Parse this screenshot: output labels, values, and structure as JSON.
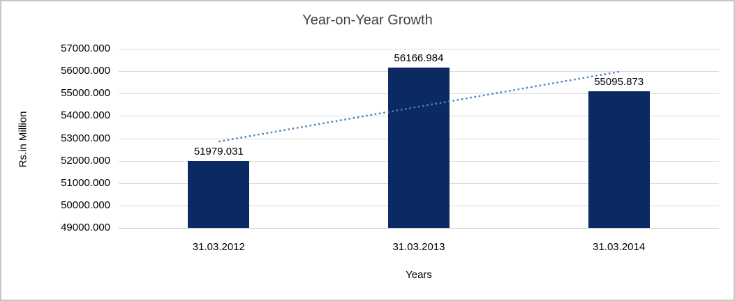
{
  "chart_data": {
    "type": "bar",
    "title": "Year-on-Year Growth",
    "xlabel": "Years",
    "ylabel": "Rs.in Million",
    "categories": [
      "31.03.2012",
      "31.03.2013",
      "31.03.2014"
    ],
    "values": [
      51979.031,
      56166.984,
      55095.873
    ],
    "value_labels": [
      "51979.031",
      "56166.984",
      "55095.873"
    ],
    "ylim": [
      49000,
      57000
    ],
    "ytick_step": 1000,
    "ytick_labels": [
      "49000.000",
      "50000.000",
      "51000.000",
      "52000.000",
      "53000.000",
      "54000.000",
      "55000.000",
      "56000.000",
      "57000.000"
    ],
    "grid": true,
    "legend_position": "none",
    "trendline": {
      "type": "linear",
      "style": "dotted"
    },
    "colors": {
      "bar": "#0B2A63",
      "trendline": "#4F81BD",
      "gridline": "#D9D9D9",
      "axis_line": "#BFBFBF",
      "text": "#000000",
      "title": "#404040",
      "frame_border": "#C6C6C6"
    }
  }
}
